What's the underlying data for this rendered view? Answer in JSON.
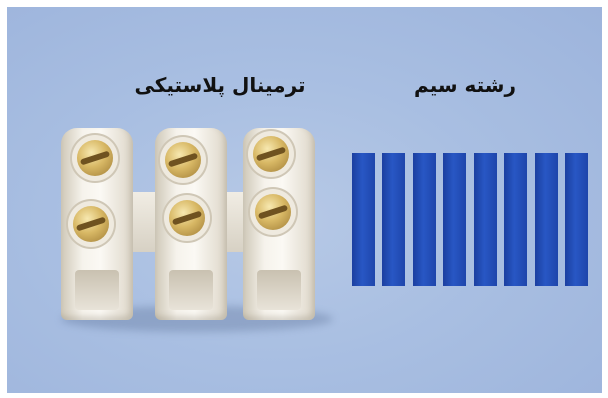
{
  "labels": {
    "terminal": "ترمینال پلاستیکی",
    "wire": "رشته سیم"
  },
  "wire_strands_count": 8,
  "colors": {
    "background": "#a9bfe2",
    "wire": "#2451be",
    "terminal": "#f4f1ea",
    "screw": "#d8b865"
  }
}
